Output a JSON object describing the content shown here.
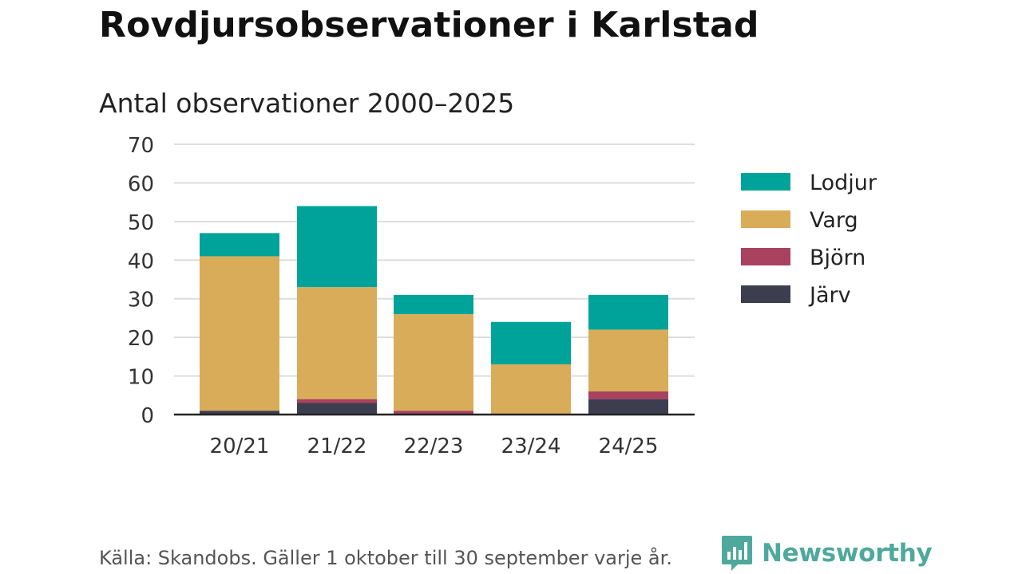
{
  "header": {
    "title": "Rovdjursobservationer i Karlstad",
    "subtitle": "Antal observationer 2000–2025"
  },
  "footer": {
    "source": "Källa: Skandobs. Gäller 1 oktober till 30 september varje år.",
    "brand": "Newsworthy"
  },
  "colors": {
    "lodjur": "#00a39a",
    "varg": "#d9ac59",
    "bjorn": "#a8425f",
    "jarv": "#3d3d50",
    "grid": "#dddddd",
    "axis": "#222222",
    "brand": "#4ea99c"
  },
  "chart_data": {
    "type": "bar",
    "stacked": true,
    "title": "Antal observationer 2000–2025",
    "xlabel": "",
    "ylabel": "",
    "ylim": [
      0,
      70
    ],
    "yticks": [
      0,
      10,
      20,
      30,
      40,
      50,
      60,
      70
    ],
    "categories": [
      "20/21",
      "21/22",
      "22/23",
      "23/24",
      "24/25"
    ],
    "series": [
      {
        "name": "Järv",
        "key": "jarv",
        "values": [
          1,
          3,
          0,
          0,
          4
        ]
      },
      {
        "name": "Björn",
        "key": "bjorn",
        "values": [
          0,
          1,
          1,
          0,
          2
        ]
      },
      {
        "name": "Varg",
        "key": "varg",
        "values": [
          40,
          29,
          25,
          13,
          16
        ]
      },
      {
        "name": "Lodjur",
        "key": "lodjur",
        "values": [
          6,
          21,
          5,
          11,
          9
        ]
      }
    ],
    "legend": [
      "Lodjur",
      "Varg",
      "Björn",
      "Järv"
    ],
    "legend_position": "right",
    "grid": true
  }
}
